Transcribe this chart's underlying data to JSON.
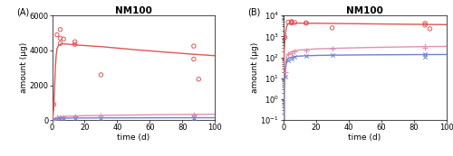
{
  "title": "NM100",
  "xlabel": "time (d)",
  "ylabel": "amount (μg)",
  "liver_data_x": [
    1,
    3,
    5,
    5,
    5,
    7,
    14,
    14,
    30,
    87,
    87,
    90
  ],
  "liver_data_y": [
    900,
    4900,
    5200,
    4700,
    4400,
    4650,
    4350,
    4500,
    2600,
    4250,
    3500,
    2350
  ],
  "spleen_data_x": [
    1,
    3,
    5,
    7,
    14,
    30,
    87,
    87
  ],
  "spleen_data_y": [
    20,
    150,
    165,
    185,
    220,
    250,
    340,
    280
  ],
  "rest_data_x": [
    1,
    3,
    5,
    7,
    14,
    30,
    87,
    87
  ],
  "rest_data_y": [
    12,
    75,
    90,
    105,
    115,
    125,
    140,
    110
  ],
  "liver_line_x": [
    0,
    0.5,
    1,
    1.5,
    2,
    2.5,
    3,
    4,
    5,
    6,
    7,
    10,
    14,
    20,
    30,
    50,
    70,
    90,
    100
  ],
  "liver_line_y": [
    0,
    200,
    700,
    1800,
    3000,
    3700,
    4100,
    4300,
    4350,
    4380,
    4380,
    4360,
    4320,
    4280,
    4220,
    4050,
    3900,
    3760,
    3700
  ],
  "spleen_line_x": [
    0,
    0.5,
    1,
    1.5,
    2,
    2.5,
    3,
    4,
    5,
    6,
    7,
    10,
    14,
    20,
    30,
    50,
    70,
    90,
    100
  ],
  "spleen_line_y": [
    0,
    5,
    18,
    55,
    100,
    130,
    155,
    175,
    190,
    200,
    208,
    225,
    240,
    255,
    270,
    295,
    315,
    330,
    335
  ],
  "rest_line_x": [
    0,
    0.5,
    1,
    1.5,
    2,
    2.5,
    3,
    4,
    5,
    6,
    7,
    10,
    14,
    20,
    30,
    50,
    70,
    90,
    100
  ],
  "rest_line_y": [
    0,
    3,
    12,
    35,
    60,
    78,
    88,
    97,
    103,
    107,
    110,
    116,
    120,
    124,
    128,
    132,
    135,
    137,
    138
  ],
  "liver_color": "#e05555",
  "spleen_color": "#e090b0",
  "rest_color": "#7080cc",
  "ylim_linear": [
    0,
    6000
  ],
  "ylim_log": [
    0.1,
    10000
  ],
  "xlim": [
    0,
    100
  ],
  "yticks_linear": [
    0,
    2000,
    4000,
    6000
  ],
  "background_color": "#ffffff",
  "axes_bg": "#ffffff"
}
